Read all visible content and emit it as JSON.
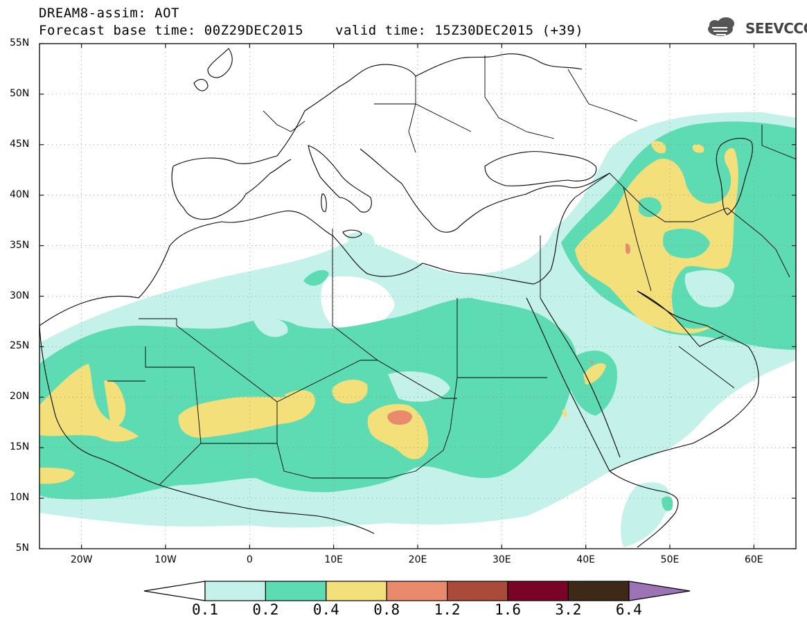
{
  "header": {
    "line1": "DREAM8-assim: AOT",
    "base_time": "Forecast base time: 00Z29DEC2015",
    "valid_time": "valid time: 15Z30DEC2015 (+39)"
  },
  "logo": {
    "text": "SEEVCCC",
    "icon": "cloud-icon"
  },
  "map": {
    "variable": "AOT",
    "lon_range": [
      -25,
      65
    ],
    "lat_range": [
      5,
      55
    ],
    "lat_labels": [
      "55N",
      "50N",
      "45N",
      "40N",
      "35N",
      "30N",
      "25N",
      "20N",
      "15N",
      "10N",
      "5N"
    ],
    "lon_labels": [
      "20W",
      "10W",
      "0",
      "10E",
      "20E",
      "30E",
      "40E",
      "50E",
      "60E"
    ],
    "colors": {
      "c01": "#c4f1ea",
      "c02": "#5ddbb3",
      "c04": "#f3e07a",
      "c08": "#e88a6b",
      "c12": "#a94a3a",
      "c16": "#7a0428",
      "c32": "#3e2818",
      "c64": "#9d73b8"
    }
  },
  "colorbar": {
    "labels": [
      "0.1",
      "0.2",
      "0.4",
      "0.8",
      "1.2",
      "1.6",
      "3.2",
      "6.4"
    ]
  }
}
